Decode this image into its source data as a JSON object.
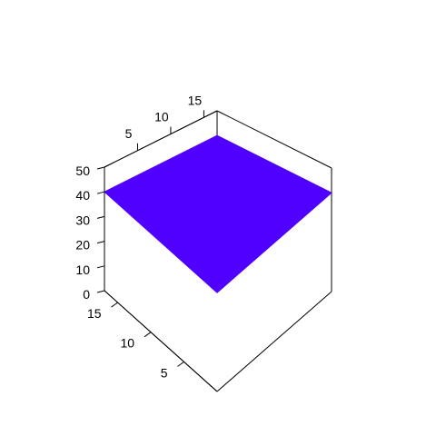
{
  "chart_data": {
    "type": "surface3d",
    "title": "",
    "xlabel": "",
    "ylabel": "",
    "zlabel": "",
    "surface_color": "#5000ff",
    "x_range": [
      0,
      17
    ],
    "y_range": [
      0,
      17
    ],
    "zlim": [
      0,
      50
    ],
    "x_ticks": [
      5,
      10,
      15
    ],
    "y_ticks": [
      5,
      10,
      15
    ],
    "z_ticks": [
      0,
      10,
      20,
      30,
      40,
      50
    ],
    "x_tick_labels": [
      "5",
      "10",
      "15"
    ],
    "y_tick_labels": [
      "5",
      "10",
      "15"
    ],
    "z_tick_labels": [
      "0",
      "10",
      "20",
      "30",
      "40",
      "50"
    ],
    "surface": {
      "z_value": 40,
      "x": [
        0,
        17
      ],
      "y": [
        0,
        17
      ]
    },
    "grid": false,
    "legend": "none"
  }
}
